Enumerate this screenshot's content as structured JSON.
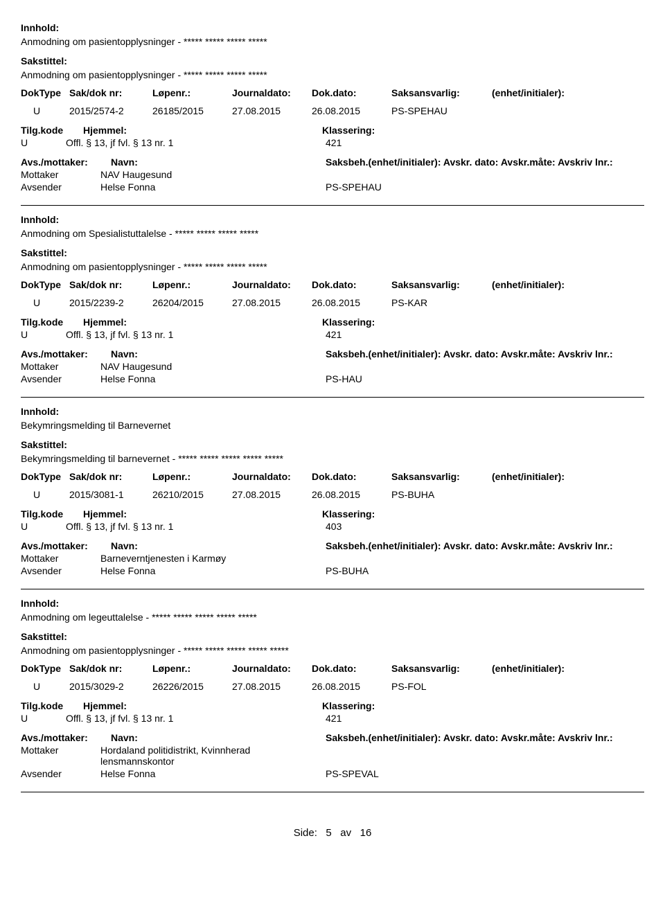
{
  "labels": {
    "innhold": "Innhold:",
    "sakstittel": "Sakstittel:",
    "doktype": "DokType",
    "sakdok": "Sak/dok nr:",
    "lopenr": "Løpenr.:",
    "journaldato": "Journaldato:",
    "dokdato": "Dok.dato:",
    "saksansvarlig": "Saksansvarlig:",
    "enhet": "(enhet/initialer):",
    "tilgkode": "Tilg.kode",
    "hjemmel": "Hjemmel:",
    "klassering": "Klassering:",
    "avsmottaker": "Avs./mottaker:",
    "navn": "Navn:",
    "saksbeh": "Saksbeh.(enhet/initialer): Avskr. dato:  Avskr.måte:  Avskriv lnr.:"
  },
  "records": [
    {
      "innhold": "Anmodning om pasientopplysninger - ***** ***** ***** *****",
      "sakstittel": "Anmodning om pasientopplysninger - ***** ***** ***** *****",
      "doktype": "U",
      "sakdok": "2015/2574-2",
      "lopenr": "26185/2015",
      "journaldato": "27.08.2015",
      "dokdato": "26.08.2015",
      "saksansvarlig": "PS-SPEHAU",
      "tilgkode": "U",
      "hjemmel": "Offl. § 13, jf fvl. § 13 nr. 1",
      "klassering": "421",
      "parties": [
        {
          "role": "Mottaker",
          "name": "NAV Haugesund",
          "unit": ""
        },
        {
          "role": "Avsender",
          "name": "Helse Fonna",
          "unit": "PS-SPEHAU"
        }
      ]
    },
    {
      "innhold": "Anmodning om Spesialistuttalelse - ***** ***** ***** *****",
      "sakstittel": "Anmodning om pasientopplysninger - ***** ***** ***** *****",
      "doktype": "U",
      "sakdok": "2015/2239-2",
      "lopenr": "26204/2015",
      "journaldato": "27.08.2015",
      "dokdato": "26.08.2015",
      "saksansvarlig": "PS-KAR",
      "tilgkode": "U",
      "hjemmel": "Offl. § 13, jf fvl. § 13 nr. 1",
      "klassering": "421",
      "parties": [
        {
          "role": "Mottaker",
          "name": "NAV Haugesund",
          "unit": ""
        },
        {
          "role": "Avsender",
          "name": "Helse Fonna",
          "unit": "PS-HAU"
        }
      ]
    },
    {
      "innhold": "Bekymringsmelding til Barnevernet",
      "sakstittel": "Bekymringsmelding til barnevernet - ***** ***** ***** ***** *****",
      "doktype": "U",
      "sakdok": "2015/3081-1",
      "lopenr": "26210/2015",
      "journaldato": "27.08.2015",
      "dokdato": "26.08.2015",
      "saksansvarlig": "PS-BUHA",
      "tilgkode": "U",
      "hjemmel": "Offl. § 13, jf fvl. § 13 nr. 1",
      "klassering": "403",
      "parties": [
        {
          "role": "Mottaker",
          "name": "Barneverntjenesten i Karmøy",
          "unit": ""
        },
        {
          "role": "Avsender",
          "name": "Helse Fonna",
          "unit": "PS-BUHA"
        }
      ]
    },
    {
      "innhold": "Anmodning om legeuttalelse - ***** ***** ***** ***** *****",
      "sakstittel": "Anmodning om pasientopplysninger - ***** ***** ***** ***** *****",
      "doktype": "U",
      "sakdok": "2015/3029-2",
      "lopenr": "26226/2015",
      "journaldato": "27.08.2015",
      "dokdato": "26.08.2015",
      "saksansvarlig": "PS-FOL",
      "tilgkode": "U",
      "hjemmel": "Offl. § 13, jf fvl. § 13 nr. 1",
      "klassering": "421",
      "parties": [
        {
          "role": "Mottaker",
          "name": "Hordaland politidistrikt, Kvinnherad lensmannskontor",
          "unit": ""
        },
        {
          "role": "Avsender",
          "name": "Helse Fonna",
          "unit": "PS-SPEVAL"
        }
      ]
    }
  ],
  "footer": {
    "prefix": "Side:",
    "page": "5",
    "sep": "av",
    "total": "16"
  }
}
